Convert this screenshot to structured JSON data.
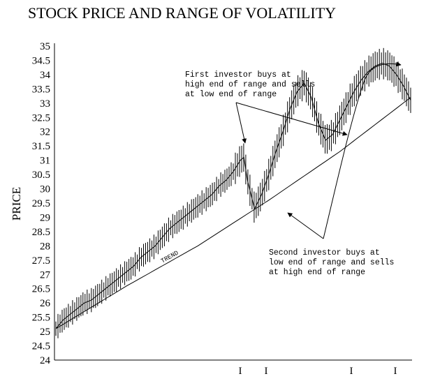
{
  "chart_data": {
    "type": "line",
    "title": "STOCK PRICE AND RANGE OF VOLATILITY",
    "ylabel": "PRICE",
    "xlabel": "",
    "ylim": [
      24,
      35
    ],
    "yticks": [
      24,
      24.5,
      25,
      25.5,
      26,
      26.5,
      27,
      27.5,
      28,
      28.5,
      29,
      29.5,
      30,
      30.5,
      31,
      31.5,
      32,
      32.5,
      33,
      33.5,
      34,
      34.5,
      35
    ],
    "xlim": [
      0,
      100
    ],
    "grid": false,
    "trend_label": "TREND",
    "trend": {
      "x": [
        0,
        20,
        40,
        60,
        80,
        100
      ],
      "y": [
        25.1,
        26.6,
        28.0,
        29.6,
        31.3,
        33.2
      ]
    },
    "price": {
      "x": [
        0,
        2,
        4,
        6,
        8,
        10,
        12,
        14,
        16,
        18,
        20,
        22,
        24,
        26,
        28,
        30,
        32,
        34,
        36,
        38,
        40,
        42,
        44,
        46,
        48,
        50,
        52,
        53,
        54,
        56,
        58,
        60,
        62,
        64,
        66,
        68,
        70,
        72,
        74,
        76,
        78,
        80,
        82,
        84,
        86,
        88,
        90,
        92,
        94,
        96,
        98,
        100
      ],
      "y": [
        25.1,
        25.4,
        25.6,
        25.8,
        26.0,
        26.1,
        26.3,
        26.5,
        26.7,
        26.9,
        27.1,
        27.3,
        27.6,
        27.8,
        28.0,
        28.3,
        28.6,
        28.8,
        29.0,
        29.2,
        29.4,
        29.6,
        29.8,
        30.1,
        30.3,
        30.6,
        31.0,
        31.1,
        30.3,
        29.3,
        29.8,
        30.5,
        31.3,
        32.0,
        32.8,
        33.4,
        33.7,
        33.2,
        32.3,
        31.7,
        31.9,
        32.4,
        32.9,
        33.4,
        33.8,
        34.1,
        34.3,
        34.4,
        34.3,
        34.0,
        33.6,
        33.1
      ]
    },
    "annotations": [
      {
        "lines": [
          "First investor buys at",
          "high end of range and sells",
          "at low end of range"
        ]
      },
      {
        "lines": [
          "Second investor buys at",
          "low end of range and sells",
          "at high end of range"
        ]
      }
    ],
    "x_markers": [
      "I",
      "I",
      "I",
      "I"
    ]
  }
}
